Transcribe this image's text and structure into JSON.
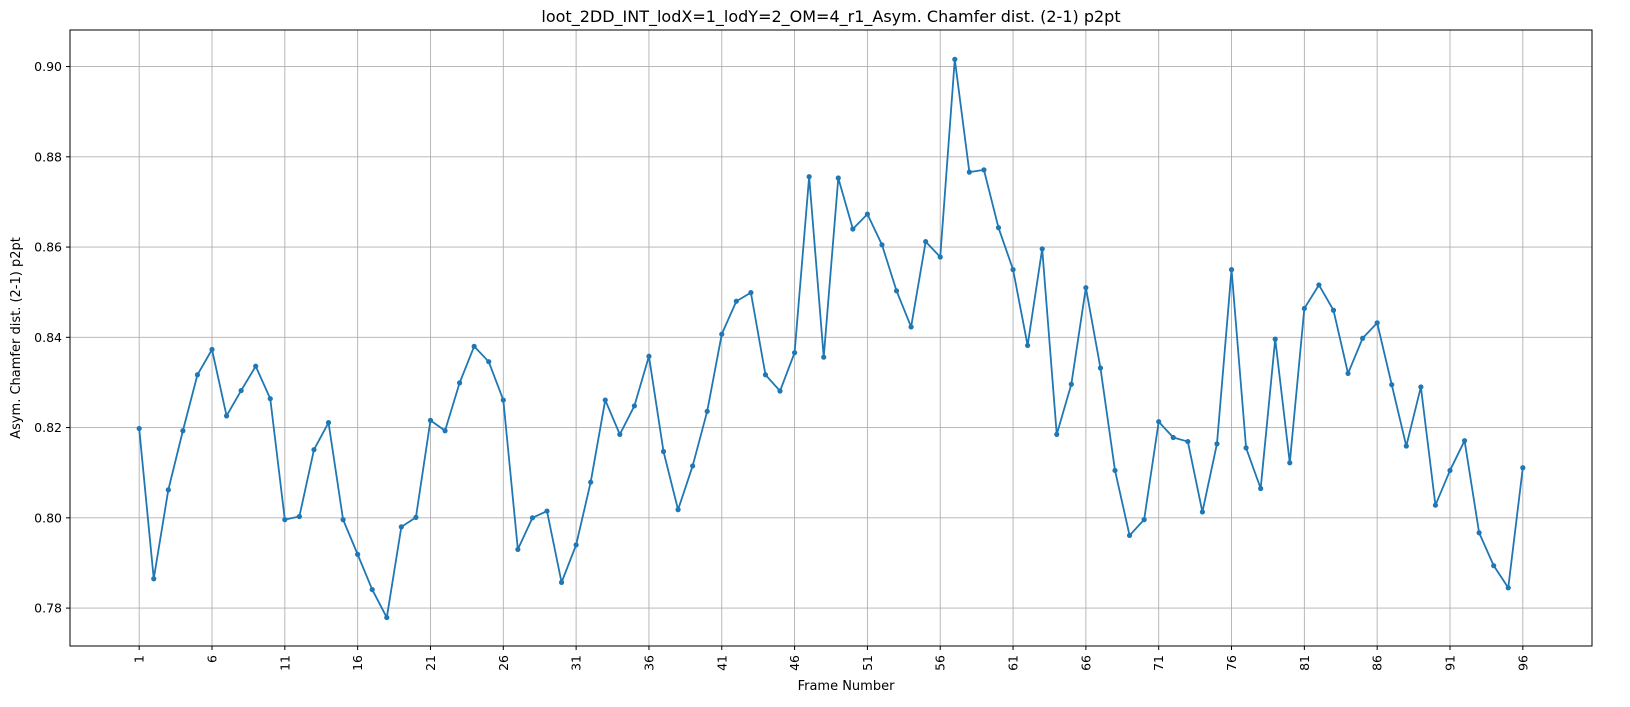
{
  "chart_data": {
    "type": "line",
    "title": "loot_2DD_INT_lodX=1_lodY=2_OM=4_r1_Asym. Chamfer dist. (2-1) p2pt",
    "xlabel": "Frame Number",
    "ylabel": "Asym. Chamfer dist. (2-1) p2pt",
    "xlim": [
      -3.75,
      100.75
    ],
    "ylim": [
      0.7716,
      0.9081
    ],
    "x_ticks": [
      1,
      6,
      11,
      16,
      21,
      26,
      31,
      36,
      41,
      46,
      51,
      56,
      61,
      66,
      71,
      76,
      81,
      86,
      91,
      96
    ],
    "x_tick_labels": [
      "1",
      "6",
      "11",
      "16",
      "21",
      "26",
      "31",
      "36",
      "41",
      "46",
      "51",
      "56",
      "61",
      "66",
      "71",
      "76",
      "81",
      "86",
      "91",
      "96"
    ],
    "y_ticks": [
      0.78,
      0.8,
      0.82,
      0.84,
      0.86,
      0.88,
      0.9
    ],
    "y_tick_labels": [
      "0.78",
      "0.80",
      "0.82",
      "0.84",
      "0.86",
      "0.88",
      "0.90"
    ],
    "grid": true,
    "color": "#1f77b4",
    "marker": "circle",
    "x": [
      1,
      2,
      3,
      4,
      5,
      6,
      7,
      8,
      9,
      10,
      11,
      12,
      13,
      14,
      15,
      16,
      17,
      18,
      19,
      20,
      21,
      22,
      23,
      24,
      25,
      26,
      27,
      28,
      29,
      30,
      31,
      32,
      33,
      34,
      35,
      36,
      37,
      38,
      39,
      40,
      41,
      42,
      43,
      44,
      45,
      46,
      47,
      48,
      49,
      50,
      51,
      52,
      53,
      54,
      55,
      56,
      57,
      58,
      59,
      60,
      61,
      62,
      63,
      64,
      65,
      66,
      67,
      68,
      69,
      70,
      71,
      72,
      73,
      74,
      75,
      76,
      77,
      78,
      79,
      80,
      81,
      82,
      83,
      84,
      85,
      86,
      87,
      88,
      89,
      90,
      91,
      92,
      93,
      94,
      95,
      96
    ],
    "y": [
      0.8198,
      0.7865,
      0.8062,
      0.8193,
      0.8317,
      0.8373,
      0.8226,
      0.8282,
      0.8336,
      0.8264,
      0.7996,
      0.8003,
      0.8151,
      0.8211,
      0.7996,
      0.7919,
      0.7841,
      0.7779,
      0.798,
      0.8001,
      0.8216,
      0.8193,
      0.8299,
      0.838,
      0.8346,
      0.8261,
      0.793,
      0.8,
      0.8015,
      0.7857,
      0.794,
      0.8079,
      0.8261,
      0.8185,
      0.8248,
      0.8358,
      0.8147,
      0.8018,
      0.8115,
      0.8236,
      0.8407,
      0.848,
      0.8499,
      0.8317,
      0.8281,
      0.8366,
      0.8756,
      0.8356,
      0.8753,
      0.864,
      0.8673,
      0.8605,
      0.8503,
      0.8423,
      0.8612,
      0.8578,
      0.9016,
      0.8766,
      0.8771,
      0.8643,
      0.855,
      0.8382,
      0.8596,
      0.8185,
      0.8296,
      0.851,
      0.8332,
      0.8105,
      0.7961,
      0.7996,
      0.8213,
      0.8178,
      0.8169,
      0.8013,
      0.8164,
      0.855,
      0.8155,
      0.8065,
      0.8396,
      0.8122,
      0.8464,
      0.8516,
      0.846,
      0.832,
      0.8398,
      0.8432,
      0.8295,
      0.8159,
      0.829,
      0.8028,
      0.8105,
      0.8171,
      0.7967,
      0.7894,
      0.7845,
      0.8111
    ]
  }
}
